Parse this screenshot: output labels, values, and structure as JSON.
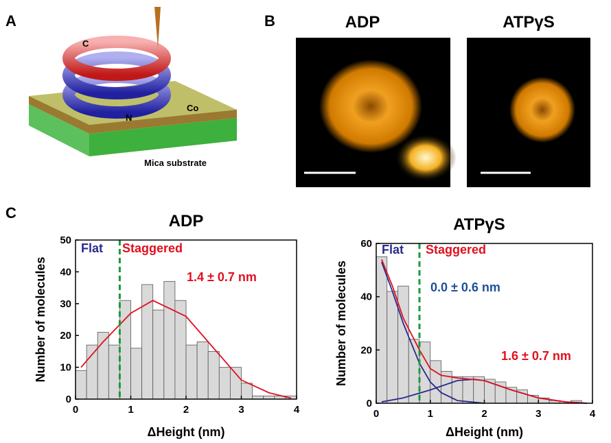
{
  "panels": {
    "a": "A",
    "b": "B",
    "c": "C"
  },
  "schematic": {
    "c_label": "C",
    "n_label": "N",
    "co_label": "Co",
    "substrate_label": "Mica substrate"
  },
  "images": {
    "left_title": "ADP",
    "right_title": "ATPγS"
  },
  "chart_data": [
    {
      "type": "histogram",
      "title": "ADP",
      "x_label": "ΔHeight (nm)",
      "y_label": "Number of molecules",
      "bins": [
        0,
        0.2,
        0.4,
        0.6,
        0.8,
        1.0,
        1.2,
        1.4,
        1.6,
        1.8,
        2.0,
        2.2,
        2.4,
        2.6,
        2.8,
        3.0,
        3.2,
        3.4,
        3.6,
        3.8,
        4.0
      ],
      "values": [
        9,
        17,
        21,
        17,
        31,
        16,
        36,
        28,
        37,
        31,
        17,
        18,
        15,
        10,
        10,
        5,
        1,
        1,
        1,
        1
      ],
      "color": "#d9d9d9",
      "xlim": [
        0,
        4
      ],
      "ylim": [
        0,
        50
      ],
      "xticks": [
        0,
        1,
        2,
        3,
        4
      ],
      "yticks": [
        0,
        10,
        20,
        30,
        40,
        50
      ],
      "threshold": 0.8,
      "threshold_color": "#1a9a3a",
      "fits": [
        {
          "color": "#e0101e",
          "x": [
            0.1,
            0.5,
            1.0,
            1.4,
            2.0,
            2.5,
            3.0,
            3.5,
            3.9
          ],
          "y": [
            10,
            18,
            27,
            31,
            26,
            16,
            6,
            2,
            0.3
          ]
        }
      ],
      "annotations": [
        {
          "text": "Flat",
          "color": "#2a2a8c"
        },
        {
          "text": "Staggered",
          "color": "#e0101e"
        },
        {
          "text": "1.4 ± 0.7 nm",
          "color": "#e0101e"
        }
      ]
    },
    {
      "type": "histogram",
      "title": "ATPγS",
      "x_label": "ΔHeight (nm)",
      "y_label": "Number of molecules",
      "bins": [
        0,
        0.2,
        0.4,
        0.6,
        0.8,
        1.0,
        1.2,
        1.4,
        1.6,
        1.8,
        2.0,
        2.2,
        2.4,
        2.6,
        2.8,
        3.0,
        3.2,
        3.4,
        3.6,
        3.8,
        4.0
      ],
      "values": [
        55,
        42,
        44,
        24,
        23,
        16,
        12,
        10,
        10,
        10,
        9,
        8,
        6,
        5,
        3,
        2,
        1,
        0,
        1,
        0
      ],
      "color": "#d9d9d9",
      "xlim": [
        0,
        4
      ],
      "ylim": [
        0,
        60
      ],
      "xticks": [
        0,
        1,
        2,
        3,
        4
      ],
      "yticks": [
        0,
        20,
        40,
        60
      ],
      "threshold": 0.8,
      "threshold_color": "#1a9a3a",
      "fits": [
        {
          "color": "#2a2a8c",
          "x": [
            0.1,
            0.3,
            0.5,
            0.8,
            1.0,
            1.2,
            1.5,
            2.0
          ],
          "y": [
            53,
            42,
            30,
            15,
            8,
            4,
            1,
            0
          ]
        },
        {
          "color": "#2a2a8c",
          "x": [
            0.1,
            0.5,
            1.0,
            1.5,
            1.8,
            2.0,
            2.5,
            3.0,
            3.5,
            3.9
          ],
          "y": [
            0.5,
            2,
            5,
            8.5,
            9,
            8.5,
            5,
            2,
            0.5,
            0
          ]
        },
        {
          "color": "#e0101e",
          "x": [
            0.1,
            0.3,
            0.5,
            0.8,
            1.0,
            1.2,
            1.5,
            2.0,
            2.5,
            3.0,
            3.5,
            3.9
          ],
          "y": [
            54,
            44,
            32,
            20,
            13,
            10.5,
            9.5,
            8.5,
            5,
            2,
            0.5,
            0
          ]
        }
      ],
      "annotations": [
        {
          "text": "Flat",
          "color": "#2a2a8c"
        },
        {
          "text": "Staggered",
          "color": "#e0101e"
        },
        {
          "text": "0.0 ± 0.6 nm",
          "color": "#1f4e9a"
        },
        {
          "text": "1.6 ± 0.7 nm",
          "color": "#e0101e"
        }
      ]
    }
  ]
}
